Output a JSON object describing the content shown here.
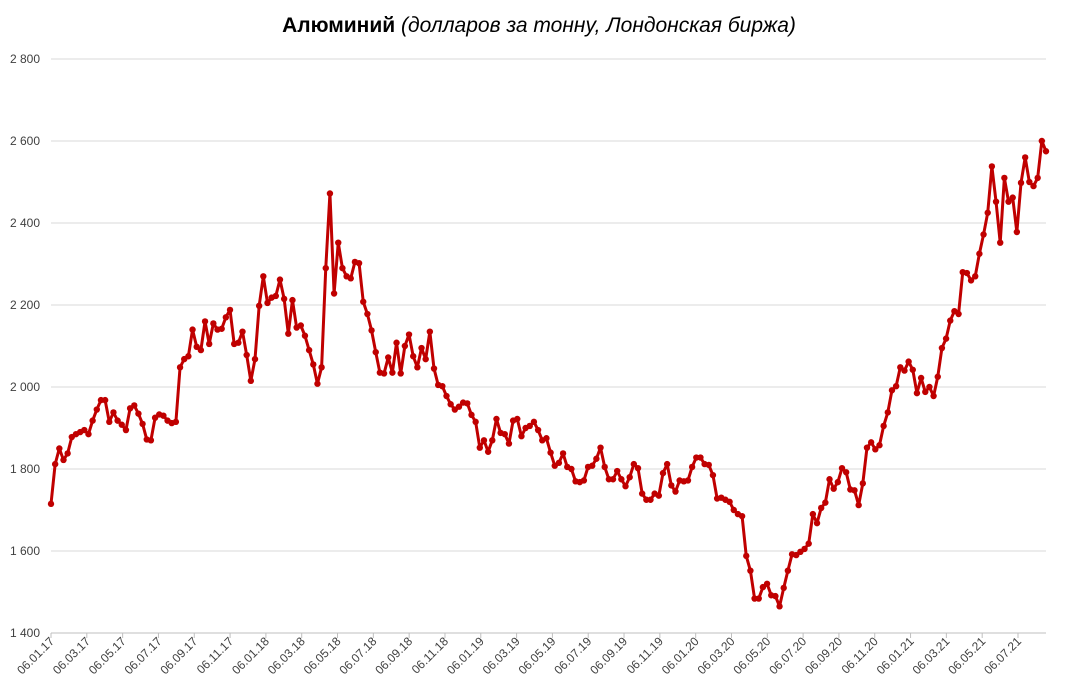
{
  "chart_data": {
    "type": "line",
    "title": "Алюминий",
    "subtitle": "(долларов за тонну, Лондонская биржа)",
    "xlabel": "",
    "ylabel": "",
    "ylim": [
      1400,
      2800
    ],
    "yticks": [
      1400,
      1600,
      1800,
      2000,
      2200,
      2400,
      2600,
      2800
    ],
    "ytick_labels": [
      "1 400",
      "1 600",
      "1 800",
      "2 000",
      "2 200",
      "2 400",
      "2 600",
      "2 800"
    ],
    "xtick_labels": [
      "06.01.17",
      "06.03.17",
      "06.05.17",
      "06.07.17",
      "06.09.17",
      "06.11.17",
      "06.01.18",
      "06.03.18",
      "06.05.18",
      "06.07.18",
      "06.09.18",
      "06.11.18",
      "06.01.19",
      "06.03.19",
      "06.05.19",
      "06.07.19",
      "06.09.19",
      "06.11.19",
      "06.01.20",
      "06.03.20",
      "06.05.20",
      "06.07.20",
      "06.09.20",
      "06.11.20",
      "06.01.21",
      "06.03.21",
      "06.05.21",
      "06.07.21"
    ],
    "grid": true,
    "series_color": "#C00000",
    "series": [
      {
        "name": "",
        "values": [
          1715,
          1812,
          1850,
          1822,
          1838,
          1878,
          1885,
          1890,
          1895,
          1885,
          1918,
          1945,
          1968,
          1968,
          1915,
          1938,
          1918,
          1908,
          1895,
          1948,
          1955,
          1935,
          1910,
          1872,
          1870,
          1925,
          1933,
          1930,
          1918,
          1912,
          1915,
          2048,
          2068,
          2075,
          2140,
          2098,
          2090,
          2160,
          2105,
          2155,
          2140,
          2142,
          2170,
          2188,
          2105,
          2108,
          2135,
          2078,
          2015,
          2068,
          2198,
          2270,
          2205,
          2218,
          2222,
          2262,
          2215,
          2130,
          2212,
          2145,
          2150,
          2125,
          2090,
          2055,
          2008,
          2048,
          2290,
          2472,
          2228,
          2352,
          2290,
          2270,
          2265,
          2305,
          2302,
          2208,
          2178,
          2138,
          2085,
          2035,
          2033,
          2072,
          2035,
          2108,
          2033,
          2100,
          2128,
          2075,
          2048,
          2095,
          2068,
          2135,
          2045,
          2005,
          2002,
          1978,
          1958,
          1945,
          1952,
          1962,
          1960,
          1932,
          1915,
          1852,
          1870,
          1842,
          1870,
          1922,
          1888,
          1885,
          1862,
          1918,
          1922,
          1880,
          1900,
          1905,
          1915,
          1895,
          1870,
          1875,
          1840,
          1808,
          1815,
          1838,
          1805,
          1800,
          1770,
          1768,
          1772,
          1805,
          1808,
          1825,
          1852,
          1805,
          1775,
          1775,
          1795,
          1775,
          1758,
          1780,
          1812,
          1802,
          1740,
          1725,
          1725,
          1740,
          1735,
          1790,
          1812,
          1760,
          1745,
          1772,
          1770,
          1772,
          1805,
          1828,
          1828,
          1812,
          1810,
          1785,
          1728,
          1730,
          1725,
          1720,
          1700,
          1690,
          1685,
          1588,
          1552,
          1484,
          1484,
          1512,
          1520,
          1492,
          1490,
          1465,
          1510,
          1552,
          1592,
          1590,
          1598,
          1605,
          1618,
          1690,
          1668,
          1705,
          1718,
          1775,
          1752,
          1768,
          1802,
          1792,
          1750,
          1748,
          1712,
          1765,
          1852,
          1865,
          1848,
          1858,
          1905,
          1938,
          1992,
          2002,
          2048,
          2040,
          2062,
          2042,
          1985,
          2022,
          1988,
          2000,
          1978,
          2025,
          2095,
          2118,
          2162,
          2185,
          2178,
          2280,
          2278,
          2260,
          2270,
          2325,
          2372,
          2425,
          2538,
          2452,
          2352,
          2510,
          2452,
          2462,
          2378,
          2498,
          2560,
          2500,
          2490,
          2510,
          2600,
          2575
        ]
      }
    ]
  }
}
